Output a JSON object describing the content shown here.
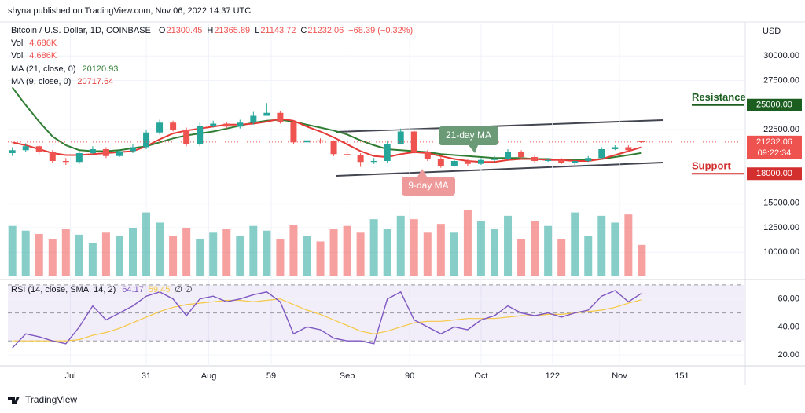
{
  "chart_data": {
    "type": "candlestick",
    "header": "shyna published on TradingView.com, Nov 06, 2022 14:37 UTC",
    "symbol": "Bitcoin / U.S. Dollar, 1D, COINBASE",
    "ohlc_letters": [
      "O",
      "H",
      "L",
      "C"
    ],
    "change_label": "−68.39 (−0.32%)",
    "currency": "USD",
    "countdown": "09:22:34",
    "vol_legend": {
      "name": "Vol",
      "value_label": "4.686K"
    },
    "ma21_legend": "MA (21, close, 0)",
    "ma9_legend": "MA (9, close, 0)",
    "rsi_legend": "RSI (14, close, SMA, 14, 2)",
    "rsi_empty": "∅ ∅",
    "footer": "TradingView",
    "up_color": "#26a69a",
    "down_color": "#ef5350",
    "ma21_color": "#2e7d32",
    "ma9_color": "#e53935",
    "rsi_color": "#7e57c2",
    "rsi_sma_color": "#f5c842",
    "x": [
      1,
      4,
      7,
      10,
      13,
      16,
      19,
      22,
      25,
      28,
      31,
      34,
      37,
      40,
      43,
      46,
      49,
      52,
      55,
      58,
      61,
      64,
      67,
      70,
      73,
      76,
      79,
      82,
      85,
      88,
      91,
      94,
      97,
      100,
      103,
      106,
      109,
      112,
      115,
      118,
      121,
      124,
      127,
      130,
      133,
      136,
      139,
      142
    ],
    "xlim": [
      0,
      165
    ],
    "xticks": [
      {
        "value": 14,
        "label": "Jul"
      },
      31,
      {
        "value": 45,
        "label": "Aug"
      },
      59,
      {
        "value": 76,
        "label": "Sep"
      },
      90,
      {
        "value": 106,
        "label": "Oct"
      },
      122,
      {
        "value": 137,
        "label": "Nov"
      },
      151
    ],
    "open": [
      20100,
      20400,
      20800,
      20200,
      19300,
      19200,
      20100,
      20500,
      19800,
      20300,
      20700,
      22200,
      23200,
      22500,
      21000,
      22900,
      23100,
      22800,
      23200,
      23900,
      24200,
      23300,
      21200,
      21400,
      21300,
      20000,
      19900,
      19200,
      19300,
      21000,
      22300,
      20200,
      19500,
      18800,
      19300,
      19000,
      19400,
      19500,
      20200,
      19700,
      19300,
      19400,
      19100,
      19300,
      19600,
      20500,
      20700,
      21300.45
    ],
    "high": [
      20700,
      21100,
      20900,
      20400,
      19600,
      20300,
      20800,
      20700,
      20500,
      21000,
      22500,
      23500,
      23400,
      22700,
      23200,
      23400,
      23300,
      23500,
      24300,
      25200,
      24400,
      23400,
      21700,
      21600,
      21400,
      20300,
      20100,
      19600,
      21300,
      22600,
      22500,
      20400,
      19700,
      19500,
      19500,
      19600,
      19800,
      20500,
      20400,
      19900,
      19600,
      19600,
      19500,
      19800,
      20700,
      20900,
      20900,
      21365.89
    ],
    "low": [
      19800,
      20200,
      20000,
      19100,
      18900,
      19000,
      20000,
      19600,
      19700,
      20100,
      20500,
      22000,
      22300,
      20800,
      20800,
      22700,
      22600,
      22600,
      23000,
      24000,
      23100,
      21000,
      21000,
      21100,
      19800,
      19700,
      18700,
      19000,
      19100,
      21000,
      20000,
      19300,
      18600,
      18700,
      18800,
      18900,
      19200,
      19400,
      19500,
      19100,
      19200,
      19000,
      18900,
      19200,
      19500,
      20400,
      20200,
      21143.72
    ],
    "close": [
      20400,
      20800,
      20200,
      19300,
      19200,
      20100,
      20500,
      19800,
      20300,
      20700,
      22200,
      23200,
      22500,
      21000,
      22900,
      23100,
      22800,
      23200,
      23900,
      24200,
      23300,
      21200,
      21400,
      21300,
      20000,
      19900,
      19200,
      19300,
      21000,
      22300,
      20200,
      19500,
      18800,
      19300,
      19000,
      19400,
      19500,
      20200,
      19700,
      19300,
      19400,
      19100,
      19300,
      19600,
      20500,
      20700,
      20400,
      21232.06
    ],
    "ma21": [
      26800,
      25000,
      23300,
      21800,
      20900,
      20400,
      20300,
      20300,
      20400,
      20600,
      20800,
      21200,
      21600,
      21900,
      22100,
      22300,
      22600,
      22900,
      23200,
      23400,
      23500,
      23300,
      23000,
      22700,
      22400,
      22000,
      21400,
      20900,
      20500,
      20400,
      20300,
      20200,
      20000,
      19900,
      19800,
      19700,
      19600,
      19600,
      19600,
      19500,
      19500,
      19400,
      19400,
      19400,
      19500,
      19700,
      19900,
      20120.93
    ],
    "ma9": [
      21200,
      20900,
      20500,
      20100,
      19900,
      19900,
      20000,
      20100,
      20200,
      20300,
      20800,
      21500,
      22100,
      22400,
      22600,
      22800,
      23000,
      23000,
      23100,
      23300,
      23600,
      23400,
      22800,
      22300,
      21700,
      21000,
      20300,
      19800,
      19700,
      20000,
      20200,
      20100,
      19800,
      19500,
      19300,
      19200,
      19200,
      19400,
      19500,
      19500,
      19400,
      19400,
      19300,
      19300,
      19500,
      19900,
      20300,
      20717.64
    ],
    "volume": [
      7.5,
      6.8,
      6.3,
      5.6,
      7.0,
      6.2,
      5.0,
      6.5,
      6.0,
      7.2,
      9.5,
      8.0,
      6.0,
      7.2,
      5.5,
      6.5,
      7.0,
      6.0,
      7.5,
      6.8,
      5.5,
      7.6,
      6.0,
      5.2,
      7.0,
      7.5,
      6.5,
      8.5,
      7.0,
      9.0,
      8.5,
      6.5,
      7.8,
      6.5,
      9.8,
      8.2,
      7.0,
      9.0,
      5.5,
      8.2,
      7.5,
      5.5,
      9.5,
      6.0,
      9.0,
      8.0,
      9.2,
      4.686
    ],
    "ylim": [
      7300,
      33300
    ],
    "yticks": [
      {
        "value": 30000,
        "label": "30000.00"
      },
      {
        "value": 27500,
        "label": "27500.00"
      },
      {
        "value": 22500,
        "label": "22500.00"
      },
      {
        "value": 15000,
        "label": "15000.00"
      },
      {
        "value": 12500,
        "label": "12500.00"
      },
      {
        "value": 10000,
        "label": "10000.00"
      }
    ],
    "levels": [
      {
        "label": "Resistance",
        "value": 25000,
        "value_label": "25000.00",
        "color": "#1b5e20"
      },
      {
        "label": "Support",
        "value": 18000,
        "value_label": "18000.00",
        "color": "#d32f2f"
      }
    ],
    "ma_tags": [
      "21-day MA",
      "9-day MA"
    ],
    "rsi": [
      25,
      35,
      33,
      30,
      28,
      40,
      55,
      45,
      50,
      55,
      62,
      65,
      60,
      48,
      60,
      62,
      58,
      60,
      63,
      65,
      58,
      35,
      40,
      38,
      32,
      30,
      30,
      28,
      60,
      65,
      45,
      40,
      35,
      40,
      38,
      45,
      48,
      55,
      50,
      48,
      50,
      47,
      50,
      52,
      62,
      66,
      58,
      64.17
    ],
    "rsi_sma": [
      30,
      30,
      30,
      30,
      30,
      31,
      34,
      36,
      39,
      43,
      47,
      51,
      54,
      56,
      57,
      58,
      59,
      59,
      58,
      59,
      60,
      56,
      52,
      49,
      45,
      41,
      37,
      35,
      37,
      40,
      43,
      44,
      44,
      45,
      46,
      46,
      46,
      47,
      48,
      48,
      49,
      49,
      50,
      51,
      52,
      54,
      57,
      59.45
    ],
    "rsi_ylim": [
      12.2,
      73.3
    ],
    "rsi_bands": [
      70,
      50,
      30
    ],
    "rsi_yticks": [
      {
        "value": 60,
        "label": "60.00"
      },
      {
        "value": 40,
        "label": "40.00"
      },
      {
        "value": 20,
        "label": "20.00"
      }
    ]
  }
}
